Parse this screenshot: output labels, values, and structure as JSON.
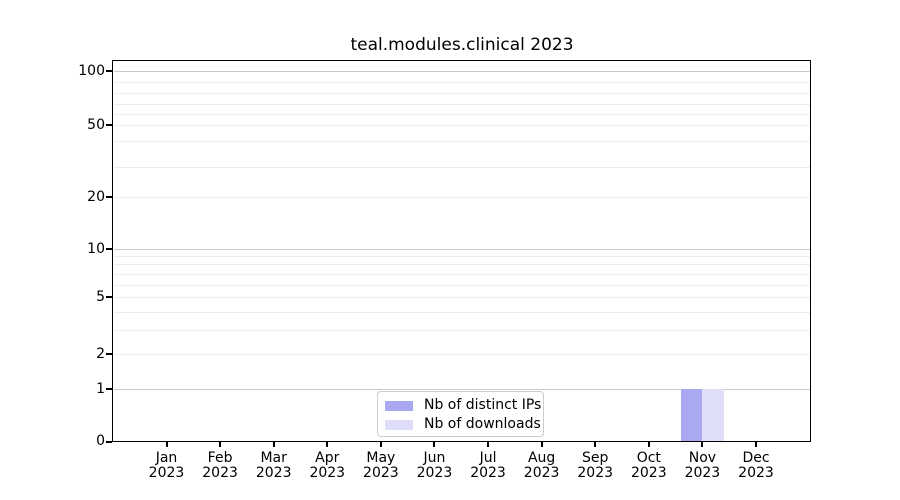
{
  "chart_data": {
    "type": "bar",
    "title": "teal.modules.clinical 2023",
    "categories": [
      "Jan",
      "Feb",
      "Mar",
      "Apr",
      "May",
      "Jun",
      "Jul",
      "Aug",
      "Sep",
      "Oct",
      "Nov",
      "Dec"
    ],
    "category_year": "2023",
    "series": [
      {
        "name": "Nb of distinct IPs",
        "color": "#a9a9f1",
        "values": [
          0,
          0,
          0,
          0,
          0,
          0,
          0,
          0,
          0,
          0,
          1,
          0
        ]
      },
      {
        "name": "Nb of downloads",
        "color": "#dedef8",
        "values": [
          0,
          0,
          0,
          0,
          0,
          0,
          0,
          0,
          0,
          0,
          1,
          0
        ]
      }
    ],
    "xlabel": "",
    "ylabel": "",
    "y_ticks": [
      0,
      1,
      2,
      5,
      10,
      20,
      50,
      100
    ],
    "ylim": [
      0,
      113
    ],
    "y_scale": "logarithmic (log1p-like) with 0 baseline",
    "grid": "horizontal, strong lines at powers of 10, faint minor lines",
    "legend_position": "inside bottom-center",
    "colors": {
      "axis": "#000000",
      "grid_major": "#c9c9c9",
      "grid_minor": "#ededed",
      "legend_border": "#cccccc"
    }
  }
}
